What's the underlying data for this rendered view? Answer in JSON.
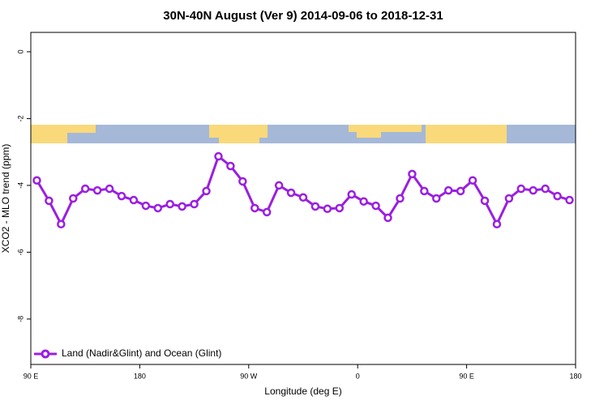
{
  "chart_data": {
    "type": "line",
    "title": "30N-40N August (Ver 9)   2014-09-06 to 2018-12-31",
    "xlabel": "Longitude (deg E)",
    "ylabel": "XCO2 - MLO trend (ppm)",
    "x": [
      95,
      105,
      115,
      125,
      135,
      145,
      155,
      165,
      175,
      185,
      195,
      205,
      215,
      225,
      235,
      245,
      255,
      265,
      275,
      285,
      295,
      305,
      315,
      325,
      335,
      345,
      355,
      365,
      375,
      385,
      395,
      405,
      415,
      425,
      435,
      445,
      455,
      465,
      475,
      485,
      495,
      505,
      515,
      525,
      535
    ],
    "series": [
      {
        "name": "Land (Nadir&Glint) and Ocean (Glint)",
        "color": "#9a1fe0",
        "values": [
          -3.85,
          -4.46,
          -5.16,
          -4.39,
          -4.1,
          -4.15,
          -4.1,
          -4.32,
          -4.44,
          -4.61,
          -4.68,
          -4.56,
          -4.63,
          -4.56,
          -4.17,
          -3.13,
          -3.42,
          -3.88,
          -4.68,
          -4.8,
          -4.0,
          -4.22,
          -4.36,
          -4.63,
          -4.7,
          -4.68,
          -4.27,
          -4.48,
          -4.61,
          -4.97,
          -4.39,
          -3.66,
          -4.17,
          -4.39,
          -4.15,
          -4.17,
          -3.85,
          -4.46,
          -5.16,
          -4.39,
          -4.1,
          -4.15,
          -4.1,
          -4.32,
          -4.44
        ]
      }
    ],
    "xlim": [
      90,
      540
    ],
    "xticks": [
      {
        "value": 90,
        "label": "90 E"
      },
      {
        "value": 180,
        "label": "180"
      },
      {
        "value": 270,
        "label": "90 W"
      },
      {
        "value": 360,
        "label": "0"
      },
      {
        "value": 450,
        "label": "90 E"
      },
      {
        "value": 540,
        "label": "180"
      }
    ],
    "ylim": [
      -9.36,
      0.58
    ],
    "yticks": [
      0,
      -2,
      -4,
      -6,
      -8
    ],
    "legend": "bottom-left"
  }
}
